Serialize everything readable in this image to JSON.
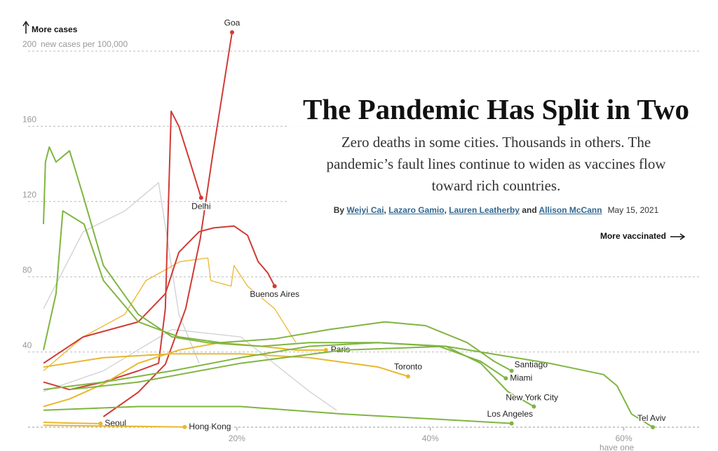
{
  "chart_data": {
    "type": "line",
    "title": "The Pandemic Has Split in Two",
    "subtitle": "Zero deaths in some cities. Thousands in others. The pandemic’s fault lines continue to widen as vaccines flow toward rich countries.",
    "byline": {
      "prefix": "By",
      "authors": [
        "Weiyi Cai",
        "Lazaro Gamio",
        "Lauren Leatherby",
        "Allison McCann"
      ],
      "separator": ",",
      "conjunction": "and",
      "date": "May 15, 2021"
    },
    "annotations": {
      "y_direction": "More cases",
      "x_direction": "More vaccinated"
    },
    "ylabel": "new cases per 100,000",
    "xlabel": "have one",
    "xlim": [
      0,
      68
    ],
    "ylim": [
      0,
      200
    ],
    "yticks": [
      40,
      80,
      120,
      160,
      200
    ],
    "xticks": [
      {
        "value": 20,
        "label": "20%"
      },
      {
        "value": 40,
        "label": "40%"
      },
      {
        "value": 60,
        "label": "60%"
      }
    ],
    "grid": true,
    "series": [
      {
        "color": "#d0d0d0",
        "x": [
          0,
          4.1,
          8.4,
          11.9,
          14.0,
          16.1
        ],
        "values": [
          63,
          104,
          115,
          130,
          60,
          34
        ]
      },
      {
        "color": "#d0d0d0",
        "x": [
          0,
          6.2,
          13.3,
          20.4,
          27.5,
          30.3
        ],
        "values": [
          19,
          30,
          52,
          48,
          19,
          9
        ]
      },
      {
        "color": "#e8b830",
        "x": [
          0,
          4.1,
          8.4,
          10.6,
          14.1,
          17.0,
          17.3,
          19.4,
          19.7,
          21.1,
          23.9,
          26.1
        ],
        "values": [
          30,
          48,
          60,
          78,
          88,
          90,
          78,
          75,
          86,
          75,
          63,
          45
        ]
      },
      {
        "name": "Goa",
        "color": "#d03b35",
        "x": [
          6.2,
          9.8,
          12.6,
          14.7,
          16.2,
          17.5,
          19.5
        ],
        "values": [
          5.6,
          18.6,
          33.5,
          63,
          100,
          145,
          210
        ]
      },
      {
        "name": "Delhi",
        "color": "#d03b35",
        "x": [
          0,
          2.7,
          6.2,
          9.8,
          11.9,
          12.6,
          13.2,
          14.0,
          15.1,
          16.3
        ],
        "values": [
          24,
          20,
          24,
          30,
          34,
          63,
          168,
          160,
          142,
          122
        ]
      },
      {
        "name": "Buenos Aires",
        "color": "#d03b35",
        "x": [
          0,
          4.1,
          9.8,
          12.6,
          14.0,
          16.1,
          17.6,
          19.7,
          21.1,
          22.2,
          23.2,
          23.9
        ],
        "values": [
          34,
          48,
          56,
          71,
          93,
          104,
          106,
          107,
          102,
          88,
          82,
          75
        ]
      },
      {
        "name": "Paris",
        "color": "#e8b830",
        "x": [
          0,
          2.7,
          6.2,
          9.8,
          14.0,
          18.3,
          22.5,
          26.1,
          29.2
        ],
        "values": [
          11,
          15,
          23,
          34,
          41,
          45,
          43,
          41,
          41
        ]
      },
      {
        "name": "Toronto",
        "color": "#e8b830",
        "x": [
          0,
          6.2,
          13.3,
          20.4,
          27.5,
          34.6,
          37.7
        ],
        "values": [
          32,
          37,
          39,
          39,
          37,
          32,
          27
        ]
      },
      {
        "name": "Seoul",
        "color": "#e8b830",
        "x": [
          0,
          2.7,
          5.9
        ],
        "values": [
          2.6,
          2.2,
          1.9
        ]
      },
      {
        "name": "Hong Kong",
        "color": "#e8b830",
        "x": [
          0,
          9.8,
          14.6
        ],
        "values": [
          1,
          0.4,
          0.1
        ]
      },
      {
        "name": "Santiago",
        "color": "#7fb540",
        "x": [
          0,
          1.3,
          2.0,
          4.2,
          6.2,
          9.8,
          14.0,
          18.3,
          23.9,
          29.6,
          35.3,
          39.5,
          43.8,
          46.6,
          48.4
        ],
        "values": [
          41,
          71,
          115,
          108,
          78,
          56,
          48,
          45,
          47,
          52,
          56,
          54,
          45,
          35,
          30
        ]
      },
      {
        "name": "Miami",
        "color": "#7fb540",
        "x": [
          0,
          0.2,
          0.6,
          1.3,
          2.7,
          4.1,
          6.2,
          9.8,
          13.3,
          16.9,
          22.5,
          27.5,
          34.6,
          40.9,
          45.2,
          47.8
        ],
        "values": [
          108,
          141,
          149,
          141,
          147,
          123,
          86,
          60,
          48,
          45,
          43,
          45,
          45,
          43,
          35,
          26
        ]
      },
      {
        "name": "New York City",
        "color": "#7fb540",
        "x": [
          0,
          6.2,
          13.3,
          20.4,
          27.5,
          34.6,
          41.6,
          45.2,
          48.0,
          50.7
        ],
        "values": [
          20,
          24,
          30,
          37,
          43,
          45,
          43,
          34,
          19,
          11
        ]
      },
      {
        "name": "Los Angeles",
        "color": "#7fb540",
        "x": [
          0,
          9.8,
          20.4,
          31.0,
          41.6,
          48.4
        ],
        "values": [
          9,
          11,
          11,
          7,
          4,
          2
        ]
      },
      {
        "name": "Tel Aviv",
        "color": "#7fb540",
        "x": [
          2.7,
          9.8,
          20.4,
          31.0,
          41.6,
          52.3,
          57.9,
          59.3,
          60.8,
          63.0
        ],
        "values": [
          20,
          24,
          34,
          41,
          43,
          34,
          28,
          22,
          7,
          0
        ]
      }
    ]
  }
}
